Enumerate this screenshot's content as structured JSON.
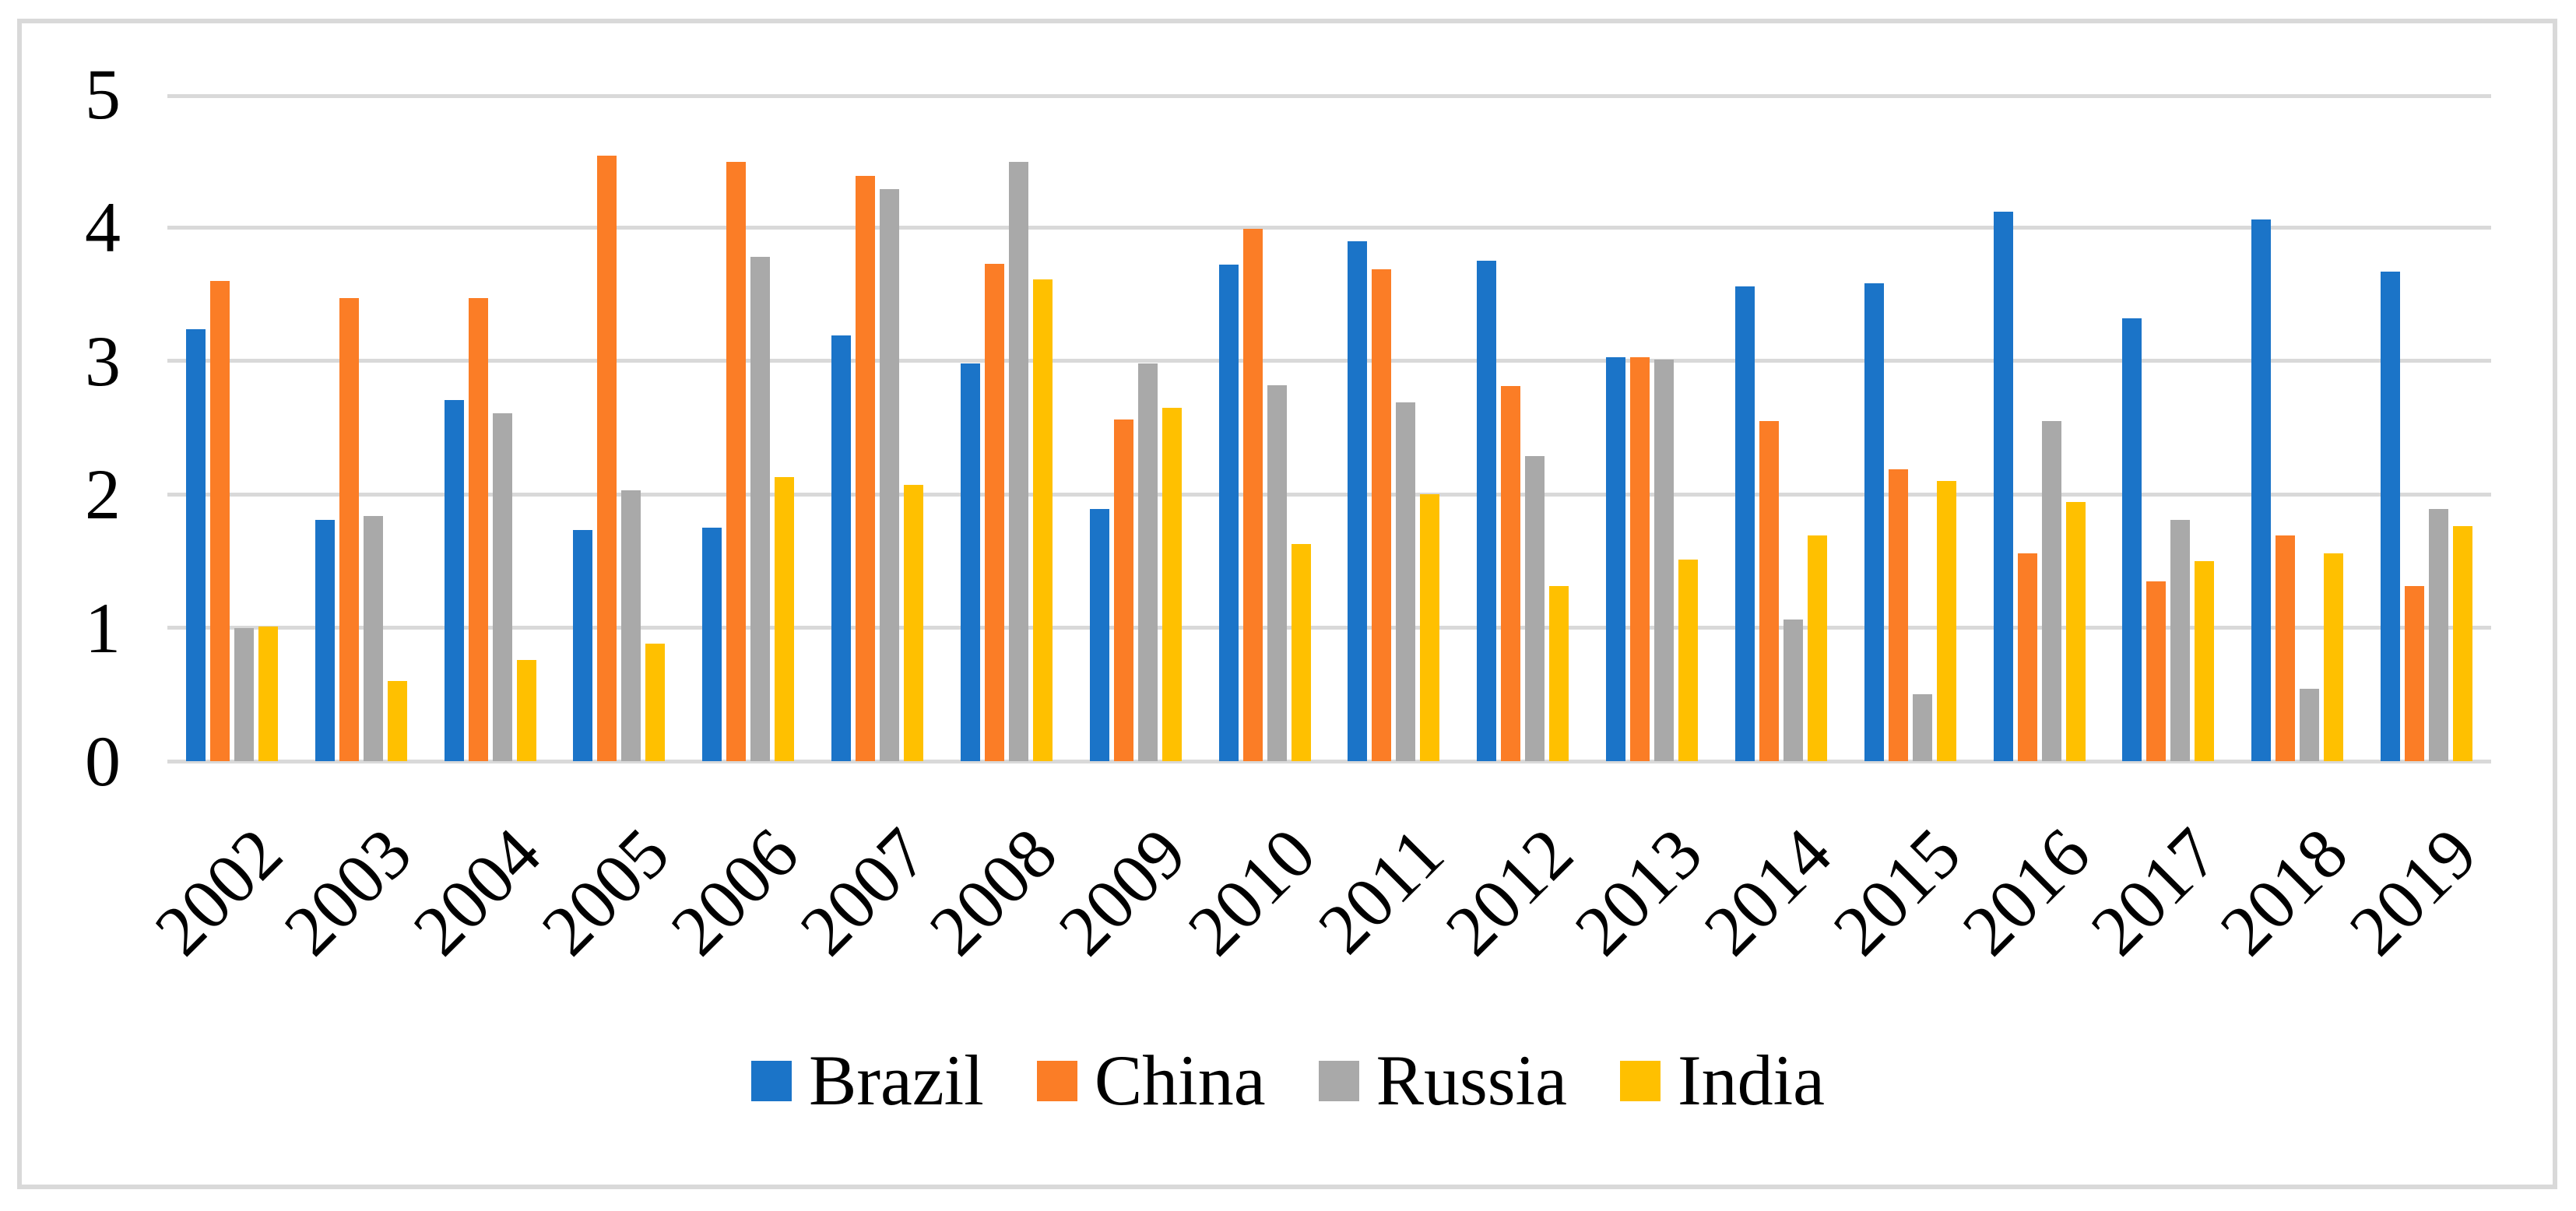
{
  "chart_data": {
    "type": "bar",
    "title": "",
    "xlabel": "",
    "ylabel": "",
    "categories": [
      "2002",
      "2003",
      "2004",
      "2005",
      "2006",
      "2007",
      "2008",
      "2009",
      "2010",
      "2011",
      "2012",
      "2013",
      "2014",
      "2015",
      "2016",
      "2017",
      "2018",
      "2019"
    ],
    "series": [
      {
        "name": "Brazil",
        "color": "#1B74C8",
        "values": [
          3.24,
          1.81,
          2.71,
          1.73,
          1.75,
          3.19,
          2.98,
          1.89,
          3.72,
          3.9,
          3.75,
          3.03,
          3.56,
          3.58,
          4.12,
          3.32,
          4.06,
          3.67
        ]
      },
      {
        "name": "China",
        "color": "#FB7D26",
        "values": [
          3.6,
          3.47,
          3.47,
          4.54,
          4.49,
          4.39,
          3.73,
          2.56,
          3.99,
          3.69,
          2.81,
          3.03,
          2.55,
          2.19,
          1.56,
          1.35,
          1.69,
          1.31
        ]
      },
      {
        "name": "Russia",
        "color": "#A9A9A9",
        "values": [
          1.0,
          1.84,
          2.61,
          2.03,
          3.78,
          4.29,
          4.49,
          2.98,
          2.82,
          2.69,
          2.29,
          3.01,
          1.06,
          0.5,
          2.55,
          1.81,
          0.54,
          1.89
        ]
      },
      {
        "name": "India",
        "color": "#FFC000",
        "values": [
          1.01,
          0.6,
          0.76,
          0.88,
          2.13,
          2.07,
          3.61,
          2.65,
          1.63,
          2.0,
          1.31,
          1.51,
          1.69,
          2.1,
          1.94,
          1.5,
          1.56,
          1.76
        ]
      }
    ],
    "ylim": [
      0,
      5
    ],
    "yticks": [
      "0",
      "1",
      "2",
      "3",
      "4",
      "5"
    ],
    "grid": true,
    "gridline_color": "#D9D9D9",
    "border_color": "#D9D9D9",
    "legend_position": "bottom"
  }
}
